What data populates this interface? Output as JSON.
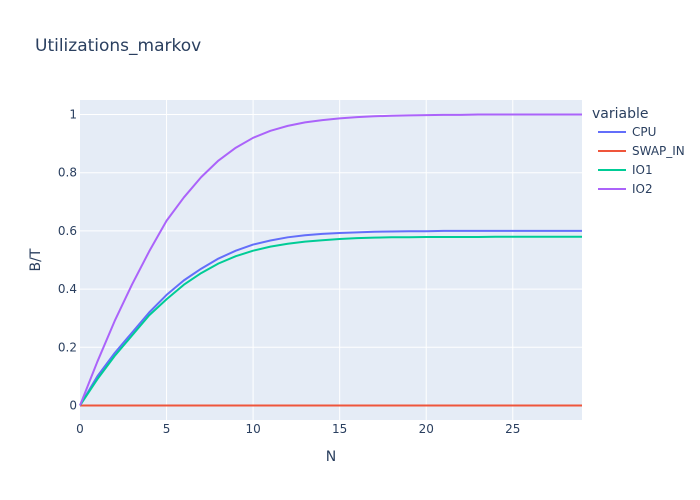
{
  "chart_data": {
    "type": "line",
    "title": "Utilizations_markov",
    "xlabel": "N",
    "ylabel": "B/T",
    "xlim": [
      0,
      29
    ],
    "ylim": [
      -0.05,
      1.05
    ],
    "xticks": [
      0,
      5,
      10,
      15,
      20,
      25
    ],
    "xtick_labels": [
      "0",
      "5",
      "10",
      "15",
      "20",
      "25"
    ],
    "yticks": [
      0,
      0.2,
      0.4,
      0.6,
      0.8,
      1
    ],
    "ytick_labels": [
      "0",
      "0.2",
      "0.4",
      "0.6",
      "0.8",
      "1"
    ],
    "grid": true,
    "legend_title": "variable",
    "legend_position": "right",
    "x": [
      0,
      1,
      2,
      3,
      4,
      5,
      6,
      7,
      8,
      9,
      10,
      11,
      12,
      13,
      14,
      15,
      16,
      17,
      18,
      19,
      20,
      21,
      22,
      23,
      24,
      25,
      26,
      27,
      28,
      29
    ],
    "series": [
      {
        "name": "CPU",
        "color": "#636efa",
        "values": [
          0,
          0.1,
          0.18,
          0.25,
          0.32,
          0.38,
          0.43,
          0.47,
          0.505,
          0.532,
          0.553,
          0.567,
          0.578,
          0.585,
          0.59,
          0.593,
          0.595,
          0.597,
          0.598,
          0.599,
          0.599,
          0.6,
          0.6,
          0.6,
          0.6,
          0.6,
          0.6,
          0.6,
          0.6,
          0.6
        ]
      },
      {
        "name": "SWAP_IN",
        "color": "#ef553b",
        "values": [
          0,
          0,
          0,
          0,
          0,
          0,
          0,
          0,
          0,
          0,
          0,
          0,
          0,
          0,
          0,
          0,
          0,
          0,
          0,
          0,
          0,
          0,
          0,
          0,
          0,
          0,
          0,
          0,
          0,
          0
        ]
      },
      {
        "name": "IO1",
        "color": "#00cc96",
        "values": [
          0,
          0.09,
          0.17,
          0.24,
          0.31,
          0.365,
          0.415,
          0.455,
          0.488,
          0.513,
          0.532,
          0.546,
          0.556,
          0.563,
          0.568,
          0.572,
          0.575,
          0.577,
          0.578,
          0.578,
          0.579,
          0.579,
          0.579,
          0.579,
          0.58,
          0.58,
          0.58,
          0.58,
          0.58,
          0.58
        ]
      },
      {
        "name": "IO2",
        "color": "#ab63fa",
        "values": [
          0,
          0.15,
          0.29,
          0.415,
          0.53,
          0.635,
          0.715,
          0.785,
          0.842,
          0.886,
          0.92,
          0.944,
          0.961,
          0.973,
          0.981,
          0.987,
          0.991,
          0.994,
          0.996,
          0.997,
          0.998,
          0.999,
          0.999,
          1,
          1,
          1,
          1,
          1,
          1,
          1
        ]
      }
    ]
  }
}
